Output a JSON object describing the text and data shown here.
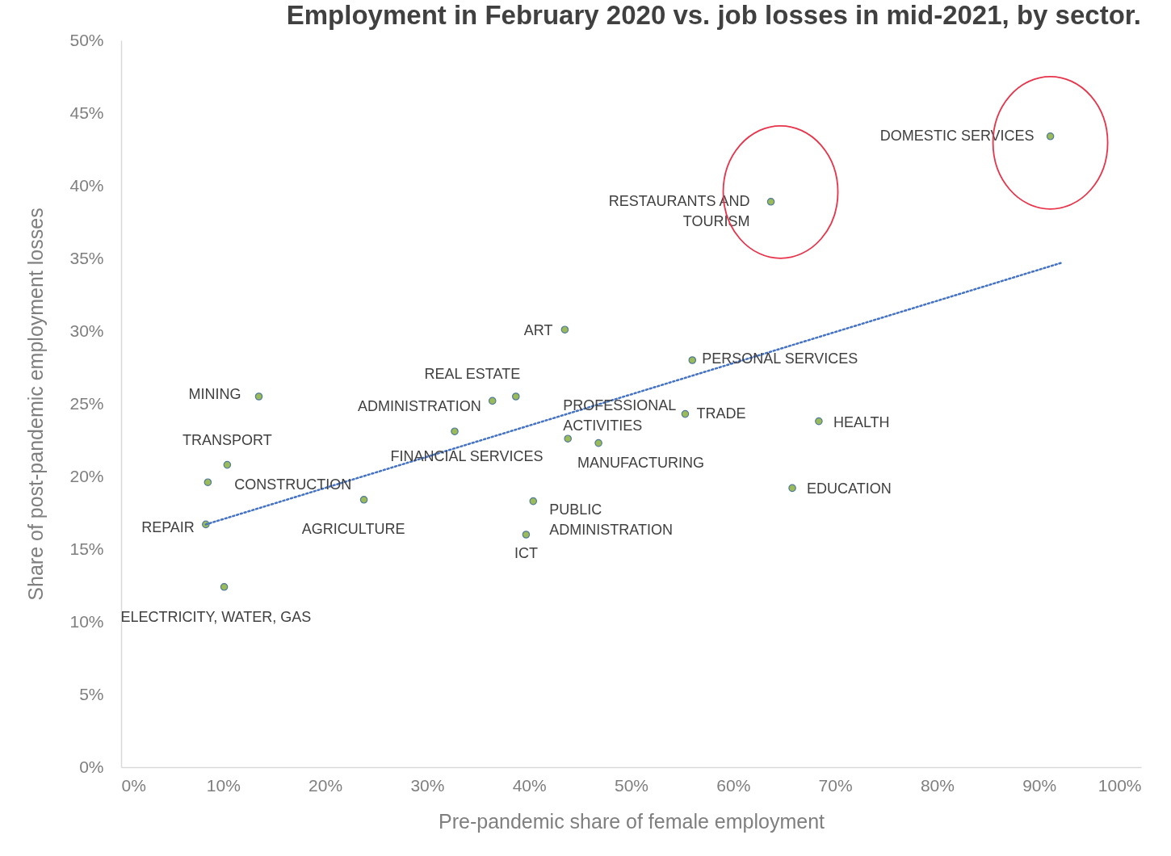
{
  "chart_data": {
    "type": "scatter",
    "title": "Employment in February 2020 vs. job losses in mid-2021, by sector.",
    "xlabel": "Pre-pandemic share of female employment",
    "ylabel": "Share of post-pandemic employment losses",
    "series": [
      {
        "type": "scatter",
        "color": "#9bbb59",
        "marker": "circle",
        "x": [
          91.1,
          63.7,
          43.5,
          56.0,
          13.5,
          38.7,
          36.4,
          55.3,
          68.4,
          32.7,
          43.8,
          46.8,
          10.4,
          8.5,
          65.8,
          23.8,
          40.4,
          8.3,
          39.7,
          10.1
        ],
        "values": [
          43.4,
          38.9,
          30.1,
          28.0,
          25.5,
          25.5,
          25.2,
          24.3,
          23.8,
          23.1,
          22.6,
          22.3,
          20.8,
          19.6,
          19.2,
          18.4,
          18.3,
          16.7,
          16.0,
          12.4
        ]
      },
      {
        "type": "line",
        "color": "#4472c4",
        "marker": "none",
        "line_style": "dotted",
        "x": [
          8.3,
          92.2
        ],
        "values": [
          16.7,
          34.7
        ]
      }
    ],
    "xlim": [
      0,
      100
    ],
    "ylim": [
      0,
      50
    ],
    "xticks": [
      {
        "value": 0,
        "label": "0%"
      },
      {
        "value": 10,
        "label": "10%"
      },
      {
        "value": 20,
        "label": "20%"
      },
      {
        "value": 30,
        "label": "30%"
      },
      {
        "value": 40,
        "label": "40%"
      },
      {
        "value": 50,
        "label": "50%"
      },
      {
        "value": 60,
        "label": "60%"
      },
      {
        "value": 70,
        "label": "70%"
      },
      {
        "value": 80,
        "label": "80%"
      },
      {
        "value": 90,
        "label": "90%"
      },
      {
        "value": 100,
        "label": "100%"
      }
    ],
    "yticks": [
      {
        "value": 0,
        "label": "0%"
      },
      {
        "value": 5,
        "label": "5%"
      },
      {
        "value": 10,
        "label": "10%"
      },
      {
        "value": 15,
        "label": "15%"
      },
      {
        "value": 20,
        "label": "20%"
      },
      {
        "value": 25,
        "label": "25%"
      },
      {
        "value": 30,
        "label": "30%"
      },
      {
        "value": 35,
        "label": "35%"
      },
      {
        "value": 40,
        "label": "40%"
      },
      {
        "value": 45,
        "label": "45%"
      },
      {
        "value": 50,
        "label": "50%"
      }
    ],
    "grid": false,
    "annotations": [
      {
        "text": "DOMESTIC SERVICES",
        "x": 91.1,
        "y": 43.4
      },
      {
        "text": "RESTAURANTS AND\nTOURISM",
        "x": 63.7,
        "y": 38.9
      },
      {
        "text": "ART",
        "x": 43.5,
        "y": 30.1
      },
      {
        "text": "PERSONAL SERVICES",
        "x": 56.0,
        "y": 28.0
      },
      {
        "text": "MINING",
        "x": 13.5,
        "y": 25.5
      },
      {
        "text": "REAL ESTATE",
        "x": 38.7,
        "y": 25.5
      },
      {
        "text": "ADMINISTRATION",
        "x": 36.4,
        "y": 25.2
      },
      {
        "text": "TRADE",
        "x": 55.3,
        "y": 24.3
      },
      {
        "text": "HEALTH",
        "x": 68.4,
        "y": 23.8
      },
      {
        "text": "FINANCIAL SERVICES",
        "x": 32.7,
        "y": 23.1
      },
      {
        "text": "PROFESSIONAL\nACTIVITIES",
        "x": 43.8,
        "y": 22.6
      },
      {
        "text": "MANUFACTURING",
        "x": 46.8,
        "y": 22.3
      },
      {
        "text": "TRANSPORT",
        "x": 10.4,
        "y": 20.8
      },
      {
        "text": "CONSTRUCTION",
        "x": 8.5,
        "y": 19.6
      },
      {
        "text": "EDUCATION",
        "x": 65.8,
        "y": 19.2
      },
      {
        "text": "AGRICULTURE",
        "x": 23.8,
        "y": 18.4
      },
      {
        "text": "PUBLIC\nADMINISTRATION",
        "x": 40.4,
        "y": 18.3
      },
      {
        "text": "REPAIR",
        "x": 8.3,
        "y": 16.7
      },
      {
        "text": "ICT",
        "x": 39.7,
        "y": 16.0
      },
      {
        "text": "ELECTRICITY, WATER, GAS",
        "x": 10.1,
        "y": 12.4
      }
    ]
  }
}
